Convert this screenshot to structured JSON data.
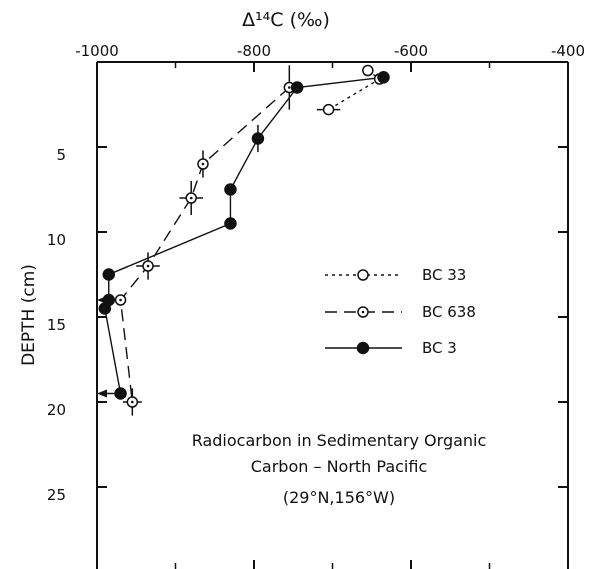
{
  "chart_data": {
    "type": "scatter",
    "x_axis_label": "Δ¹⁴C (‰)",
    "y_axis_label": "DEPTH  (cm)",
    "xlim": [
      -1000,
      -400
    ],
    "ylim": [
      0,
      30
    ],
    "y_inverted": true,
    "x_ticks": [
      -1000,
      -800,
      -600,
      -400
    ],
    "y_ticks": [
      5,
      10,
      15,
      20,
      25
    ],
    "x_tick_labels": [
      "-1000",
      "-800",
      "-600",
      "-400"
    ],
    "y_tick_labels": [
      "5",
      "10",
      "15",
      "20",
      "25"
    ],
    "annotation": [
      "Radiocarbon in Sedimentary Organic",
      "Carbon – North Pacific",
      "(29°N,156°W)"
    ],
    "legend_position": "right-middle",
    "series": [
      {
        "name": "BC 33",
        "marker": "open-circle",
        "line": "dotted",
        "points": [
          {
            "x": -655,
            "y": 0.5,
            "xerr": 0,
            "yerr": 0
          },
          {
            "x": -640,
            "y": 1.0,
            "xerr": 0,
            "yerr": 0
          },
          {
            "x": -705,
            "y": 2.8,
            "xerr": 15,
            "yerr": 0
          }
        ]
      },
      {
        "name": "BC 638",
        "marker": "dotted-circle",
        "line": "dashed",
        "points": [
          {
            "x": -755,
            "y": 1.5,
            "xerr": 0,
            "yerr": 1.3
          },
          {
            "x": -865,
            "y": 6.0,
            "xerr": 0,
            "yerr": 0.8
          },
          {
            "x": -880,
            "y": 8.0,
            "xerr": 15,
            "yerr": 1.0
          },
          {
            "x": -935,
            "y": 12.0,
            "xerr": 15,
            "yerr": 0.8
          },
          {
            "x": -970,
            "y": 14.0,
            "xerr": 0,
            "yerr": 0
          },
          {
            "x": -955,
            "y": 20.0,
            "xerr": 12,
            "yerr": 0.8
          }
        ]
      },
      {
        "name": "BC 3",
        "marker": "filled-circle",
        "line": "solid",
        "points": [
          {
            "x": -635,
            "y": 0.9,
            "xerr": 0,
            "yerr": 0,
            "arrow": ""
          },
          {
            "x": -745,
            "y": 1.5,
            "xerr": 0,
            "yerr": 0,
            "arrow": ""
          },
          {
            "x": -795,
            "y": 4.5,
            "xerr": 0,
            "yerr": 0.8,
            "arrow": ""
          },
          {
            "x": -830,
            "y": 7.5,
            "xerr": 0,
            "yerr": 0,
            "arrow": ""
          },
          {
            "x": -830,
            "y": 9.5,
            "xerr": 0,
            "yerr": 0,
            "arrow": ""
          },
          {
            "x": -985,
            "y": 12.5,
            "xerr": 0,
            "yerr": 0,
            "arrow": ""
          },
          {
            "x": -985,
            "y": 14.0,
            "xerr": 0,
            "yerr": 0,
            "arrow": "left"
          },
          {
            "x": -990,
            "y": 14.5,
            "xerr": 0,
            "yerr": 0,
            "arrow": ""
          },
          {
            "x": -970,
            "y": 19.5,
            "xerr": 0,
            "yerr": 0,
            "arrow": "left"
          }
        ]
      }
    ]
  }
}
